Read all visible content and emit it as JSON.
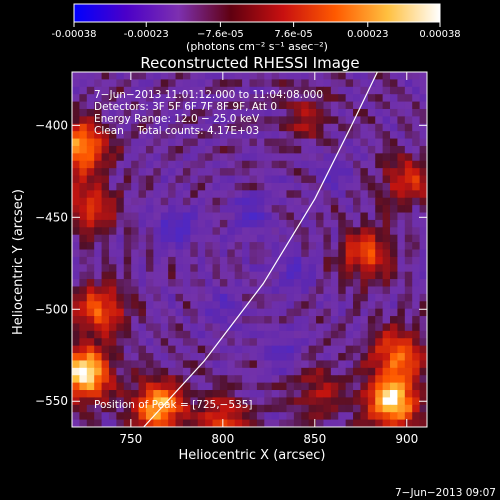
{
  "colorbar": {
    "tick_labels": [
      "-0.00038",
      "-0.00023",
      "−7.6e-05",
      "7.6e-05",
      "0.00023",
      "0.00038"
    ],
    "tick_values": [
      -0.00038,
      -0.00023,
      -7.6e-05,
      7.6e-05,
      0.00023,
      0.00038
    ],
    "range": [
      -0.00038,
      0.00038
    ],
    "units": "(photons cm⁻² s⁻¹ asec⁻²)",
    "colors": [
      "#0000ff",
      "#4b00c8",
      "#7d30b0",
      "#600010",
      "#c81010",
      "#ff5a00",
      "#ffc040",
      "#ffffff"
    ]
  },
  "chart_data": {
    "type": "heatmap",
    "title": "Reconstructed RHESSI Image",
    "xlabel": "Heliocentric X (arcsec)",
    "ylabel": "Heliocentric Y (arcsec)",
    "xlim": [
      718,
      911
    ],
    "ylim": [
      -564,
      -371
    ],
    "x_ticks": [
      750,
      800,
      850,
      900
    ],
    "y_ticks": [
      -550,
      -500,
      -450,
      -400
    ],
    "x_tick_labels": [
      "750",
      "800",
      "850",
      "900"
    ],
    "y_tick_labels": [
      "−550",
      "−500",
      "−450",
      "−400"
    ],
    "annotations": [
      "7−Jun−2013 11:01:12.000 to 11:04:08.000",
      "Detectors: 3F 5F 6F 7F 8F 9F, Att 0",
      "Energy Range: 12.0 − 25.0 keV",
      "Clean    Total counts: 4.17E+03"
    ],
    "peak_label": "Position of Peak = [725,−535]",
    "peak_position": [
      725,
      -535
    ],
    "grid": false,
    "hot_spots": [
      {
        "x": 725,
        "y": -535,
        "v": 1.0
      },
      {
        "x": 733,
        "y": -500,
        "v": 0.55
      },
      {
        "x": 723,
        "y": -412,
        "v": 0.75
      },
      {
        "x": 728,
        "y": -445,
        "v": 0.45
      },
      {
        "x": 765,
        "y": -553,
        "v": 0.8
      },
      {
        "x": 800,
        "y": -560,
        "v": 0.45
      },
      {
        "x": 892,
        "y": -550,
        "v": 0.95
      },
      {
        "x": 895,
        "y": -525,
        "v": 0.6
      },
      {
        "x": 878,
        "y": -470,
        "v": 0.5
      },
      {
        "x": 900,
        "y": -430,
        "v": 0.4
      },
      {
        "x": 852,
        "y": -545,
        "v": 0.3
      },
      {
        "x": 845,
        "y": -395,
        "v": 0.25
      }
    ],
    "cold_spots": [
      {
        "x": 775,
        "y": -455,
        "v": 0.6
      },
      {
        "x": 815,
        "y": -448,
        "v": 0.5
      },
      {
        "x": 838,
        "y": -480,
        "v": 0.45
      },
      {
        "x": 832,
        "y": -522,
        "v": 0.4
      },
      {
        "x": 800,
        "y": -500,
        "v": 0.35
      },
      {
        "x": 860,
        "y": -425,
        "v": 0.3
      }
    ],
    "limb_curve": [
      [
        757,
        -564
      ],
      [
        790,
        -528
      ],
      [
        822,
        -486
      ],
      [
        850,
        -440
      ],
      [
        870,
        -400
      ],
      [
        884,
        -371
      ]
    ]
  },
  "footer": {
    "timestamp": "7−Jun−2013 09:07"
  }
}
